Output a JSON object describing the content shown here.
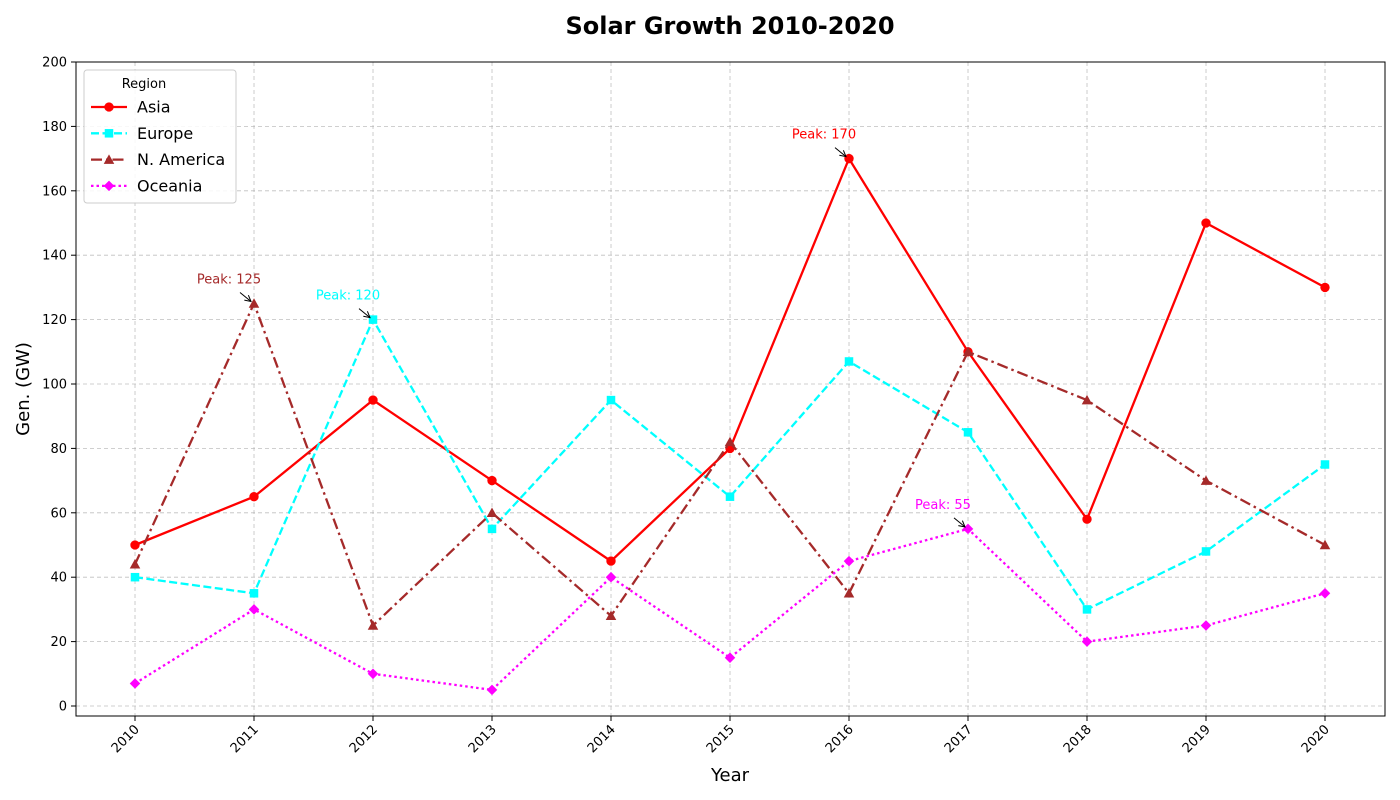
{
  "chart_data": {
    "type": "line",
    "title": "Solar Growth 2010-2020",
    "xlabel": "Year",
    "ylabel": "Gen. (GW)",
    "categories": [
      "2010",
      "2011",
      "2012",
      "2013",
      "2014",
      "2015",
      "2016",
      "2017",
      "2018",
      "2019",
      "2020"
    ],
    "ylim": [
      0,
      200
    ],
    "yticks": [
      "0",
      "20",
      "40",
      "60",
      "80",
      "100",
      "120",
      "140",
      "160",
      "180",
      "200"
    ],
    "grid": true,
    "legend": {
      "title": "Region",
      "placement": "top-left"
    },
    "series": [
      {
        "name": "Asia",
        "color": "#ff0000",
        "style": "solid",
        "marker": "circle",
        "values": [
          50,
          65,
          95,
          70,
          45,
          80,
          170,
          110,
          58,
          150,
          130
        ]
      },
      {
        "name": "Europe",
        "color": "#00ffff",
        "style": "dashed",
        "marker": "square",
        "values": [
          40,
          35,
          120,
          55,
          95,
          65,
          107,
          85,
          30,
          48,
          75
        ]
      },
      {
        "name": "N. America",
        "color": "#a52a2a",
        "style": "dashdot",
        "marker": "triangle",
        "values": [
          44,
          125,
          25,
          60,
          28,
          82,
          35,
          110,
          95,
          70,
          50
        ]
      },
      {
        "name": "Oceania",
        "color": "#ff00ff",
        "style": "dotted",
        "marker": "diamond",
        "values": [
          7,
          30,
          10,
          5,
          40,
          15,
          45,
          55,
          20,
          25,
          35
        ]
      }
    ],
    "annotations": [
      {
        "text": "Peak: 170",
        "series": "Asia",
        "x": "2016",
        "y": 170
      },
      {
        "text": "Peak: 120",
        "series": "Europe",
        "x": "2012",
        "y": 120
      },
      {
        "text": "Peak: 125",
        "series": "N. America",
        "x": "2011",
        "y": 125
      },
      {
        "text": "Peak: 55",
        "series": "Oceania",
        "x": "2017",
        "y": 55
      }
    ]
  }
}
